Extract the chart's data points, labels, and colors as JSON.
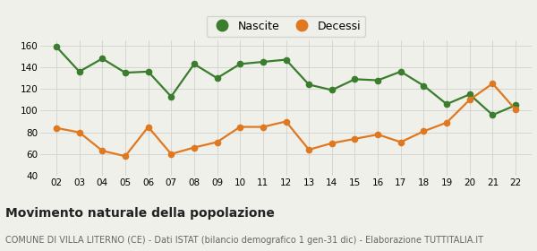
{
  "years": [
    2,
    3,
    4,
    5,
    6,
    7,
    8,
    9,
    10,
    11,
    12,
    13,
    14,
    15,
    16,
    17,
    18,
    19,
    20,
    21,
    22
  ],
  "nascite": [
    159,
    136,
    148,
    135,
    136,
    113,
    143,
    130,
    143,
    145,
    147,
    124,
    119,
    129,
    128,
    136,
    123,
    106,
    115,
    96,
    105
  ],
  "decessi": [
    84,
    80,
    63,
    58,
    85,
    60,
    66,
    71,
    85,
    85,
    90,
    64,
    70,
    74,
    78,
    71,
    81,
    89,
    110,
    125,
    101
  ],
  "nascite_color": "#3a7d2c",
  "decessi_color": "#e07820",
  "background_color": "#f0f0eb",
  "grid_color": "#d0d0d0",
  "ylim": [
    40,
    165
  ],
  "yticks": [
    40,
    60,
    80,
    100,
    120,
    140,
    160
  ],
  "title": "Movimento naturale della popolazione",
  "subtitle": "COMUNE DI VILLA LITERNO (CE) - Dati ISTAT (bilancio demografico 1 gen-31 dic) - Elaborazione TUTTITALIA.IT",
  "legend_nascite": "Nascite",
  "legend_decessi": "Decessi",
  "title_fontsize": 10,
  "subtitle_fontsize": 7,
  "marker_size": 4.5,
  "line_width": 1.6,
  "tick_fontsize": 7.5,
  "legend_fontsize": 9
}
